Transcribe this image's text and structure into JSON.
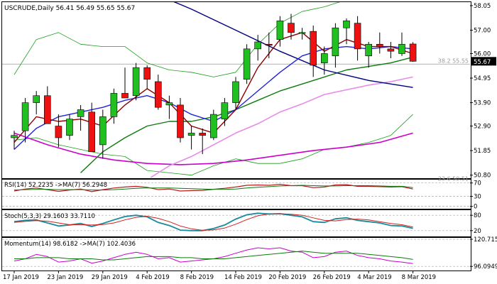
{
  "chart_data": {
    "type": "candlestick",
    "symbol_label": "USCRUDE,Daily",
    "ohlc_label": "56.41 56.49 55.65 55.67",
    "last_price_label": "55.67",
    "fib_label": "38.2 55.55",
    "fib_low_label": "23.6 50.51",
    "x_labels": [
      {
        "i": 0,
        "label": "17 Jan 2019"
      },
      {
        "i": 4,
        "label": "23 Jan 2019"
      },
      {
        "i": 8,
        "label": "29 Jan 2019"
      },
      {
        "i": 12,
        "label": "4 Feb 2019"
      },
      {
        "i": 16,
        "label": "8 Feb 2019"
      },
      {
        "i": 20,
        "label": "14 Feb 2019"
      },
      {
        "i": 24,
        "label": "20 Feb 2019"
      },
      {
        "i": 28,
        "label": "26 Feb 2019"
      },
      {
        "i": 32,
        "label": "4 Mar 2019"
      },
      {
        "i": 36,
        "label": "8 Mar 2019"
      }
    ],
    "main_ylim": [
      50.7,
      58.2
    ],
    "y_ticks": [
      "58.05",
      "57.00",
      "56.00",
      "54.95",
      "53.90",
      "52.90",
      "51.85",
      "50.80"
    ],
    "fib_level": 55.55,
    "fib_low_level": 50.51,
    "candles": [
      {
        "o": 52.4,
        "h": 52.7,
        "l": 51.9,
        "c": 52.5
      },
      {
        "o": 52.7,
        "h": 54.1,
        "l": 52.2,
        "c": 53.9
      },
      {
        "o": 53.9,
        "h": 54.4,
        "l": 53.4,
        "c": 54.2
      },
      {
        "o": 54.2,
        "h": 54.6,
        "l": 53.0,
        "c": 53.0
      },
      {
        "o": 52.9,
        "h": 53.4,
        "l": 52.0,
        "c": 52.4
      },
      {
        "o": 52.5,
        "h": 53.4,
        "l": 52.3,
        "c": 53.2
      },
      {
        "o": 53.3,
        "h": 53.8,
        "l": 52.7,
        "c": 53.6
      },
      {
        "o": 53.5,
        "h": 53.9,
        "l": 51.8,
        "c": 51.8
      },
      {
        "o": 52.1,
        "h": 53.6,
        "l": 51.5,
        "c": 53.3
      },
      {
        "o": 53.3,
        "h": 54.5,
        "l": 53.0,
        "c": 54.3
      },
      {
        "o": 54.3,
        "h": 55.4,
        "l": 54.1,
        "c": 54.1
      },
      {
        "o": 54.2,
        "h": 55.6,
        "l": 54.0,
        "c": 55.4
      },
      {
        "o": 55.4,
        "h": 55.5,
        "l": 54.5,
        "c": 54.9
      },
      {
        "o": 54.8,
        "h": 55.1,
        "l": 53.6,
        "c": 53.7
      },
      {
        "o": 53.8,
        "h": 54.2,
        "l": 53.2,
        "c": 53.9
      },
      {
        "o": 53.8,
        "h": 54.1,
        "l": 52.2,
        "c": 52.4
      },
      {
        "o": 52.5,
        "h": 52.9,
        "l": 51.9,
        "c": 52.6
      },
      {
        "o": 52.6,
        "h": 52.8,
        "l": 51.7,
        "c": 52.5
      },
      {
        "o": 52.4,
        "h": 53.6,
        "l": 52.3,
        "c": 53.4
      },
      {
        "o": 53.2,
        "h": 54.1,
        "l": 52.9,
        "c": 53.9
      },
      {
        "o": 53.9,
        "h": 55.0,
        "l": 53.6,
        "c": 54.8
      },
      {
        "o": 54.9,
        "h": 56.4,
        "l": 54.7,
        "c": 56.2
      },
      {
        "o": 56.2,
        "h": 56.8,
        "l": 55.7,
        "c": 56.5
      },
      {
        "o": 56.4,
        "h": 56.9,
        "l": 55.8,
        "c": 56.35
      },
      {
        "o": 56.6,
        "h": 57.6,
        "l": 56.3,
        "c": 57.4
      },
      {
        "o": 57.3,
        "h": 57.7,
        "l": 56.6,
        "c": 56.9
      },
      {
        "o": 56.9,
        "h": 57.1,
        "l": 56.6,
        "c": 56.9
      },
      {
        "o": 56.95,
        "h": 57.2,
        "l": 55.0,
        "c": 55.5
      },
      {
        "o": 55.6,
        "h": 56.3,
        "l": 55.1,
        "c": 56.0
      },
      {
        "o": 55.9,
        "h": 57.3,
        "l": 55.4,
        "c": 57.1
      },
      {
        "o": 57.1,
        "h": 57.5,
        "l": 56.4,
        "c": 57.4
      },
      {
        "o": 57.3,
        "h": 57.6,
        "l": 55.7,
        "c": 56.2
      },
      {
        "o": 55.9,
        "h": 56.5,
        "l": 55.4,
        "c": 56.4
      },
      {
        "o": 56.4,
        "h": 56.9,
        "l": 56.0,
        "c": 56.3
      },
      {
        "o": 56.2,
        "h": 56.5,
        "l": 55.8,
        "c": 56.1
      },
      {
        "o": 56.0,
        "h": 56.9,
        "l": 55.9,
        "c": 56.4
      },
      {
        "o": 56.41,
        "h": 56.49,
        "l": 55.65,
        "c": 55.67
      }
    ],
    "main_lines": [
      {
        "name": "bollinger-upper",
        "color": "#1a9e1a",
        "width": 0.8,
        "points": [
          [
            0,
            55.1
          ],
          [
            2,
            56.6
          ],
          [
            4,
            56.9
          ],
          [
            6,
            56.4
          ],
          [
            8,
            56.3
          ],
          [
            10,
            56.3
          ],
          [
            12,
            55.6
          ],
          [
            14,
            55.3
          ],
          [
            16,
            55.2
          ],
          [
            18,
            55.0
          ],
          [
            20,
            55.2
          ],
          [
            22,
            56.4
          ],
          [
            24,
            57.3
          ],
          [
            26,
            57.8
          ],
          [
            28,
            58.0
          ],
          [
            30,
            58.3
          ],
          [
            32,
            58.4
          ],
          [
            34,
            58.4
          ],
          [
            36,
            58.4
          ]
        ]
      },
      {
        "name": "bollinger-lower",
        "color": "#1a9e1a",
        "width": 0.8,
        "points": [
          [
            0,
            52.3
          ],
          [
            2,
            52.4
          ],
          [
            4,
            52.1
          ],
          [
            6,
            51.9
          ],
          [
            8,
            51.7
          ],
          [
            10,
            51.6
          ],
          [
            12,
            51.0
          ],
          [
            14,
            50.9
          ],
          [
            16,
            50.8
          ],
          [
            18,
            51.2
          ],
          [
            20,
            51.5
          ],
          [
            22,
            51.3
          ],
          [
            24,
            51.3
          ],
          [
            26,
            51.5
          ],
          [
            28,
            51.9
          ],
          [
            30,
            52.0
          ],
          [
            32,
            52.2
          ],
          [
            34,
            52.5
          ],
          [
            36,
            53.4
          ]
        ]
      },
      {
        "name": "ma-slow-magenta",
        "color": "#cc00cc",
        "width": 1.6,
        "points": [
          [
            0,
            52.6
          ],
          [
            3,
            52.1
          ],
          [
            6,
            51.7
          ],
          [
            9,
            51.45
          ],
          [
            12,
            51.3
          ],
          [
            15,
            51.25
          ],
          [
            18,
            51.3
          ],
          [
            21,
            51.45
          ],
          [
            24,
            51.65
          ],
          [
            27,
            51.85
          ],
          [
            30,
            52.0
          ],
          [
            33,
            52.2
          ],
          [
            36,
            52.6
          ]
        ]
      },
      {
        "name": "ma-pink",
        "color": "#e88ae8",
        "width": 1.6,
        "points": [
          [
            12,
            50.6
          ],
          [
            14,
            51.2
          ],
          [
            16,
            51.6
          ],
          [
            18,
            52.1
          ],
          [
            20,
            52.6
          ],
          [
            22,
            53.0
          ],
          [
            24,
            53.5
          ],
          [
            26,
            53.85
          ],
          [
            28,
            54.25
          ],
          [
            30,
            54.45
          ],
          [
            32,
            54.65
          ],
          [
            34,
            54.8
          ],
          [
            36,
            55.0
          ]
        ]
      },
      {
        "name": "ma-green",
        "color": "#0c7a0c",
        "width": 1.4,
        "points": [
          [
            6,
            50.9
          ],
          [
            8,
            51.8
          ],
          [
            10,
            52.4
          ],
          [
            12,
            52.9
          ],
          [
            14,
            53.1
          ],
          [
            16,
            53.1
          ],
          [
            18,
            53.3
          ],
          [
            20,
            53.6
          ],
          [
            22,
            54.0
          ],
          [
            24,
            54.4
          ],
          [
            26,
            54.7
          ],
          [
            28,
            55.0
          ],
          [
            30,
            55.3
          ],
          [
            32,
            55.45
          ],
          [
            34,
            55.6
          ],
          [
            36,
            55.85
          ]
        ]
      },
      {
        "name": "trendline-navy",
        "color": "#000080",
        "width": 1.4,
        "points": [
          [
            14,
            58.3
          ],
          [
            16,
            57.9
          ],
          [
            20,
            57.0
          ],
          [
            24,
            56.1
          ],
          [
            28,
            55.3
          ],
          [
            32,
            54.85
          ],
          [
            36,
            54.55
          ]
        ]
      },
      {
        "name": "ma-blue",
        "color": "#2222dd",
        "width": 1.4,
        "points": [
          [
            0,
            51.9
          ],
          [
            2,
            52.8
          ],
          [
            4,
            53.3
          ],
          [
            6,
            53.5
          ],
          [
            8,
            53.7
          ],
          [
            10,
            54.0
          ],
          [
            12,
            54.2
          ],
          [
            14,
            53.9
          ],
          [
            16,
            53.4
          ],
          [
            18,
            53.1
          ],
          [
            20,
            53.6
          ],
          [
            22,
            54.4
          ],
          [
            24,
            55.2
          ],
          [
            26,
            55.9
          ],
          [
            28,
            56.2
          ],
          [
            30,
            56.3
          ],
          [
            32,
            56.2
          ],
          [
            34,
            56.3
          ],
          [
            36,
            56.2
          ]
        ]
      },
      {
        "name": "ma-dark-red",
        "color": "#8b0000",
        "width": 1.4,
        "points": [
          [
            0,
            52.2
          ],
          [
            2,
            53.3
          ],
          [
            4,
            53.1
          ],
          [
            6,
            53.2
          ],
          [
            8,
            52.9
          ],
          [
            10,
            53.8
          ],
          [
            12,
            54.5
          ],
          [
            14,
            53.9
          ],
          [
            16,
            52.9
          ],
          [
            18,
            52.6
          ],
          [
            20,
            53.6
          ],
          [
            22,
            55.4
          ],
          [
            24,
            56.6
          ],
          [
            26,
            56.9
          ],
          [
            28,
            56.1
          ],
          [
            30,
            56.6
          ],
          [
            32,
            56.3
          ],
          [
            34,
            56.3
          ],
          [
            36,
            56.0
          ]
        ]
      }
    ],
    "rsi": {
      "label": "RSI(14) 52.2235 ->MA(7) 56.2948",
      "ylim": [
        -5,
        80
      ],
      "ticks": [
        {
          "v": 70,
          "label": "70"
        },
        {
          "v": 30,
          "label": "30"
        },
        {
          "v": 0,
          "label": "0"
        }
      ],
      "lines": [
        {
          "name": "rsi-line",
          "color": "#b81c1c",
          "width": 1.2,
          "values": [
            46,
            52,
            55,
            50,
            45,
            49,
            52,
            44,
            50,
            55,
            58,
            60,
            57,
            50,
            52,
            46,
            47,
            48,
            51,
            54,
            58,
            63,
            64,
            63,
            66,
            62,
            62,
            56,
            58,
            64,
            65,
            60,
            60,
            59,
            58,
            59,
            52
          ]
        },
        {
          "name": "rsi-ma",
          "color": "#0c7a0c",
          "width": 1.0,
          "values": [
            49,
            50,
            51,
            51,
            50,
            50,
            50,
            49,
            49,
            50,
            52,
            54,
            55,
            55,
            55,
            54,
            53,
            52,
            51,
            51,
            52,
            55,
            57,
            59,
            61,
            62,
            63,
            62,
            61,
            61,
            62,
            62,
            62,
            61,
            60,
            60,
            56
          ]
        }
      ]
    },
    "stoch": {
      "label": "Stoch(5,3,3) 29.1603 33.7110",
      "ylim": [
        0,
        100
      ],
      "ticks": [
        {
          "v": 80,
          "label": "80"
        },
        {
          "v": 20,
          "label": "20"
        }
      ],
      "lines": [
        {
          "name": "stoch-k",
          "color": "#1a8a9a",
          "width": 1.8,
          "values": [
            55,
            60,
            62,
            50,
            38,
            42,
            48,
            36,
            48,
            62,
            75,
            80,
            74,
            52,
            40,
            22,
            20,
            20,
            28,
            42,
            65,
            82,
            88,
            85,
            86,
            80,
            74,
            55,
            52,
            66,
            70,
            60,
            55,
            50,
            40,
            38,
            29
          ]
        },
        {
          "name": "stoch-d",
          "color": "#d02020",
          "width": 1.0,
          "values": [
            52,
            56,
            59,
            57,
            50,
            43,
            43,
            42,
            44,
            50,
            62,
            72,
            76,
            68,
            55,
            38,
            27,
            21,
            23,
            30,
            45,
            63,
            78,
            85,
            86,
            84,
            80,
            70,
            60,
            58,
            63,
            65,
            62,
            55,
            48,
            43,
            34
          ]
        }
      ]
    },
    "momentum": {
      "label": "Momentum(14) 98.6182 ->MA(7) 102.4036",
      "ylim": [
        93,
        122
      ],
      "ticks": [
        {
          "v": 120.7157,
          "label": "120.7157"
        },
        {
          "v": 96.0949,
          "label": "96.0949"
        }
      ],
      "lines": [
        {
          "name": "momentum-line",
          "color": "#cc00cc",
          "width": 1.0,
          "values": [
            101,
            103,
            107,
            105,
            100,
            101,
            103,
            99,
            101,
            104,
            107,
            109,
            107,
            103,
            104,
            100,
            101,
            102,
            103,
            105,
            108,
            111,
            113,
            112,
            113,
            110,
            109,
            104,
            105,
            109,
            110,
            106,
            104,
            103,
            101,
            100,
            98.6
          ]
        },
        {
          "name": "momentum-ma",
          "color": "#0c7a0c",
          "width": 1.0,
          "values": [
            103,
            103,
            104,
            104,
            104,
            103,
            103,
            103,
            102,
            102,
            103,
            104,
            105,
            105,
            105,
            104,
            104,
            103,
            103,
            103,
            104,
            105,
            106,
            107,
            108,
            109,
            110,
            109,
            108,
            108,
            108,
            108,
            107,
            106,
            105,
            104,
            102.4
          ]
        }
      ]
    }
  }
}
